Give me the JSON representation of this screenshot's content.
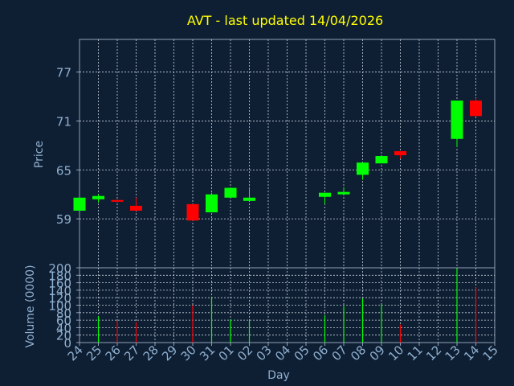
{
  "colors": {
    "background": "#0f1f33",
    "title": "#ffff00",
    "axis_text": "#8fb0d0",
    "frame": "#8fa0b8",
    "grid": "#c8d0dc",
    "up": "#00ff00",
    "down": "#ff0000"
  },
  "chart_data": [
    {
      "type": "candlestick",
      "title": "AVT - last updated 14/04/2026",
      "ylabel": "Price",
      "ylim": [
        53.0,
        81.0
      ],
      "yticks": [
        59,
        65,
        71,
        77
      ],
      "grid": true,
      "x": [
        "24",
        "25",
        "26",
        "27",
        "28",
        "29",
        "30",
        "31",
        "01",
        "02",
        "03",
        "04",
        "05",
        "06",
        "07",
        "08",
        "09",
        "10",
        "11",
        "12",
        "13",
        "14",
        "15"
      ],
      "candles": [
        {
          "x": "24",
          "open": 60.0,
          "close": 61.6,
          "high": 61.6,
          "low": 60.0,
          "direction": "up"
        },
        {
          "x": "25",
          "open": 61.4,
          "close": 61.8,
          "high": 62.0,
          "low": 61.0,
          "direction": "up"
        },
        {
          "x": "26",
          "open": 61.3,
          "close": 61.1,
          "high": 61.4,
          "low": 61.0,
          "direction": "down"
        },
        {
          "x": "27",
          "open": 60.6,
          "close": 60.0,
          "high": 61.6,
          "low": 60.0,
          "direction": "down"
        },
        {
          "x": "30",
          "open": 60.8,
          "close": 58.8,
          "high": 60.8,
          "low": 58.8,
          "direction": "down"
        },
        {
          "x": "31",
          "open": 59.8,
          "close": 62.0,
          "high": 62.2,
          "low": 59.8,
          "direction": "up"
        },
        {
          "x": "01",
          "open": 61.6,
          "close": 62.8,
          "high": 62.8,
          "low": 61.6,
          "direction": "up"
        },
        {
          "x": "02",
          "open": 61.2,
          "close": 61.6,
          "high": 62.9,
          "low": 61.2,
          "direction": "up"
        },
        {
          "x": "06",
          "open": 61.7,
          "close": 62.2,
          "high": 62.2,
          "low": 60.8,
          "direction": "up"
        },
        {
          "x": "07",
          "open": 62.0,
          "close": 62.3,
          "high": 62.9,
          "low": 62.0,
          "direction": "up"
        },
        {
          "x": "08",
          "open": 64.4,
          "close": 65.9,
          "high": 65.9,
          "low": 63.8,
          "direction": "up"
        },
        {
          "x": "09",
          "open": 65.8,
          "close": 66.7,
          "high": 66.7,
          "low": 65.8,
          "direction": "up"
        },
        {
          "x": "10",
          "open": 67.3,
          "close": 66.8,
          "high": 67.3,
          "low": 66.4,
          "direction": "down"
        },
        {
          "x": "13",
          "open": 68.8,
          "close": 73.5,
          "high": 73.5,
          "low": 67.8,
          "direction": "up"
        },
        {
          "x": "14",
          "open": 73.5,
          "close": 71.6,
          "high": 73.8,
          "low": 71.6,
          "direction": "down"
        }
      ]
    },
    {
      "type": "bar",
      "ylabel": "Volume (0000)",
      "xlabel": "Day",
      "ylim": [
        0,
        200
      ],
      "yticks": [
        0,
        20,
        40,
        60,
        80,
        100,
        120,
        140,
        160,
        180,
        200
      ],
      "grid": true,
      "categories": [
        "24",
        "25",
        "26",
        "27",
        "28",
        "29",
        "30",
        "31",
        "01",
        "02",
        "03",
        "04",
        "05",
        "06",
        "07",
        "08",
        "09",
        "10",
        "11",
        "12",
        "13",
        "14",
        "15"
      ],
      "values": [
        0,
        70,
        58,
        55,
        0,
        0,
        100,
        122,
        62,
        58,
        0,
        0,
        0,
        73,
        98,
        118,
        102,
        48,
        0,
        0,
        198,
        148,
        0
      ],
      "directions": [
        "",
        "up",
        "down",
        "down",
        "",
        "",
        "down",
        "up",
        "up",
        "up",
        "",
        "",
        "",
        "up",
        "up",
        "up",
        "up",
        "down",
        "",
        "",
        "up",
        "down",
        ""
      ]
    }
  ]
}
